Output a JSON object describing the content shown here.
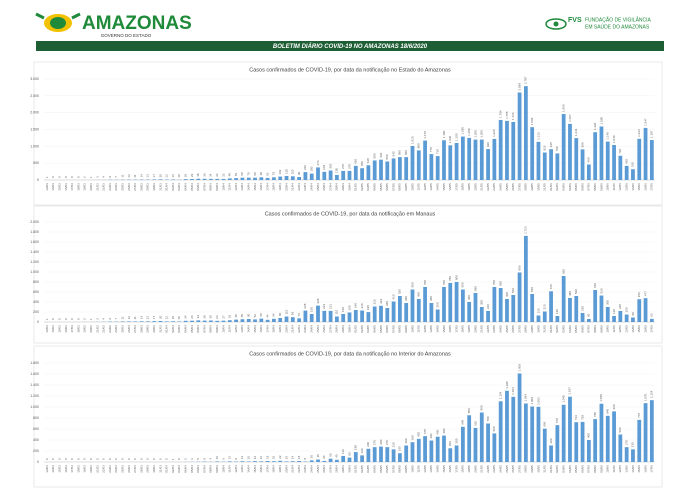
{
  "header": {
    "logo": "AMAZONAS",
    "logo_sub": "GOVERNO DO ESTADO",
    "org": "FVS",
    "org_sub1": "FUNDAÇÃO DE VIGILÂNCIA",
    "org_sub2": "EM SAÚDE DO AMAZONAS",
    "banner": "BOLETIM DIÁRIO COVID-19 NO AMAZONAS 18/6/2020"
  },
  "chart_data": [
    {
      "type": "bar",
      "title": "Casos confirmados de COVID-19, por data da notificação no Estado do Amazonas",
      "color": "#5b9bd5",
      "categories": [
        "13/03",
        "14/03",
        "15/03",
        "16/03",
        "17/03",
        "18/03",
        "19/03",
        "20/03",
        "21/03",
        "22/03",
        "23/03",
        "24/03",
        "25/03",
        "26/03",
        "27/03",
        "28/03",
        "29/03",
        "30/03",
        "31/03",
        "01/04",
        "02/04",
        "03/04",
        "04/04",
        "05/04",
        "06/04",
        "07/04",
        "08/04",
        "09/04",
        "10/04",
        "11/04",
        "12/04",
        "13/04",
        "14/04",
        "15/04",
        "16/04",
        "17/04",
        "18/04",
        "19/04",
        "20/04",
        "21/04",
        "22/04",
        "23/04",
        "24/04",
        "25/04",
        "26/04",
        "27/04",
        "28/04",
        "29/04",
        "30/04",
        "01/05",
        "02/05",
        "03/05",
        "04/05",
        "05/05",
        "06/05",
        "07/05",
        "08/05",
        "09/05",
        "10/05",
        "11/05",
        "12/05",
        "13/05",
        "14/05",
        "15/05",
        "16/05",
        "17/05",
        "18/05",
        "19/05",
        "20/05",
        "21/05",
        "22/05",
        "23/05",
        "24/05",
        "25/05",
        "26/05",
        "27/05",
        "28/05",
        "29/05",
        "30/05",
        "31/05",
        "01/06",
        "02/06",
        "03/06",
        "04/06",
        "05/06",
        "06/06",
        "07/06",
        "08/06",
        "09/06",
        "10/06",
        "11/06",
        "12/06",
        "13/06",
        "14/06",
        "15/06",
        "16/06",
        "17/06"
      ],
      "values": [
        1,
        0,
        0,
        0,
        0,
        0,
        2,
        1,
        3,
        4,
        9,
        7,
        11,
        12,
        11,
        14,
        13,
        17,
        20,
        12,
        16,
        10,
        26,
        29,
        38,
        36,
        34,
        33,
        33,
        48,
        56,
        69,
        70,
        68,
        80,
        62,
        79,
        102,
        120,
        110,
        90,
        236,
        190,
        373,
        243,
        281,
        150,
        270,
        270,
        420,
        350,
        438,
        580,
        604,
        550,
        640,
        680,
        680,
        1010,
        880,
        1170,
        770,
        710,
        1180,
        1030,
        1100,
        1290,
        1250,
        1200,
        1200,
        920,
        1220,
        1784,
        1755,
        1724,
        2599,
        2787,
        1569,
        1133,
        816,
        915,
        790,
        1960,
        1667,
        1244,
        909,
        460,
        1420,
        1590,
        1140,
        1040,
        720,
        420,
        320,
        1223,
        1547,
        1187
      ],
      "value_labels": [
        "1",
        "0",
        "0",
        "0",
        "0",
        "0",
        "2",
        "1",
        "3",
        "4",
        "9",
        "7",
        "11",
        "12",
        "11",
        "14",
        "13",
        "17",
        "20",
        "12",
        "16",
        "10",
        "26",
        "29",
        "38",
        "36",
        "34",
        "33",
        "33",
        "48",
        "56",
        "69",
        "70",
        "68",
        "80",
        "62",
        "79",
        "102",
        "120",
        "110",
        "90",
        "236",
        "190",
        "373",
        "243",
        "281",
        "150",
        "270",
        "270",
        "420",
        "350",
        "438",
        "580",
        "604",
        "550",
        "640",
        "680",
        "680",
        "1.010",
        "880",
        "1.170",
        "770",
        "710",
        "1.180",
        "1.030",
        "1.100",
        "1.290",
        "1.250",
        "1.200",
        "1.200",
        "920",
        "1.220",
        "1.784",
        "1.755",
        "1.724",
        "2.599",
        "2.787",
        "1.569",
        "1.133",
        "816",
        "915",
        "790",
        "1.960",
        "1.667",
        "1.244",
        "909",
        "460",
        "1.420",
        "1.590",
        "1.140",
        "1.040",
        "720",
        "420",
        "320",
        "1.223",
        "1.547",
        "1.187"
      ],
      "ylim": [
        0,
        3000
      ],
      "yticks": [
        {
          "value": 3000,
          "label": "3.000"
        },
        {
          "value": 2500,
          "label": "2.500"
        },
        {
          "value": 2000,
          "label": "2.000"
        },
        {
          "value": 1500,
          "label": "1.500"
        },
        {
          "value": 1000,
          "label": "1.000"
        },
        500,
        0
      ]
    },
    {
      "type": "bar",
      "title": "Casos confirmados de COVID-19, por data da notificação em Manaus",
      "color": "#5b9bd5",
      "categories": [
        "13/03",
        "14/03",
        "15/03",
        "16/03",
        "17/03",
        "18/03",
        "19/03",
        "20/03",
        "21/03",
        "22/03",
        "23/03",
        "24/03",
        "25/03",
        "26/03",
        "27/03",
        "28/03",
        "29/03",
        "30/03",
        "31/03",
        "01/04",
        "02/04",
        "03/04",
        "04/04",
        "05/04",
        "06/04",
        "07/04",
        "08/04",
        "09/04",
        "10/04",
        "11/04",
        "12/04",
        "13/04",
        "14/04",
        "15/04",
        "16/04",
        "17/04",
        "18/04",
        "19/04",
        "20/04",
        "21/04",
        "22/04",
        "23/04",
        "24/04",
        "25/04",
        "26/04",
        "27/04",
        "28/04",
        "29/04",
        "30/04",
        "01/05",
        "02/05",
        "03/05",
        "04/05",
        "05/05",
        "06/05",
        "07/05",
        "08/05",
        "09/05",
        "10/05",
        "11/05",
        "12/05",
        "13/05",
        "14/05",
        "15/05",
        "16/05",
        "17/05",
        "18/05",
        "19/05",
        "20/05",
        "21/05",
        "22/05",
        "23/05",
        "24/05",
        "25/05",
        "26/05",
        "27/05",
        "28/05",
        "29/05",
        "30/05",
        "31/05",
        "01/06",
        "02/06",
        "03/06",
        "04/06",
        "05/06",
        "06/06",
        "07/06",
        "08/06",
        "09/06",
        "10/06",
        "11/06",
        "12/06",
        "13/06",
        "14/06",
        "15/06",
        "16/06",
        "17/06"
      ],
      "values": [
        1,
        0,
        0,
        0,
        0,
        0,
        2,
        1,
        3,
        4,
        9,
        7,
        11,
        12,
        11,
        14,
        13,
        17,
        20,
        12,
        15,
        10,
        24,
        26,
        33,
        28,
        30,
        23,
        27,
        36,
        48,
        55,
        60,
        52,
        68,
        44,
        64,
        80,
        110,
        96,
        72,
        228,
        160,
        328,
        223,
        221,
        110,
        160,
        190,
        240,
        230,
        198,
        310,
        324,
        280,
        410,
        520,
        380,
        650,
        460,
        700,
        380,
        250,
        700,
        780,
        800,
        650,
        400,
        580,
        300,
        220,
        700,
        680,
        460,
        540,
        990,
        1723,
        560,
        130,
        210,
        615,
        120,
        920,
        480,
        520,
        180,
        60,
        640,
        530,
        300,
        120,
        220,
        150,
        90,
        456,
        477,
        63
      ],
      "value_labels": [
        "1",
        "0",
        "0",
        "0",
        "0",
        "0",
        "2",
        "1",
        "3",
        "4",
        "9",
        "7",
        "11",
        "12",
        "11",
        "14",
        "13",
        "17",
        "20",
        "12",
        "15",
        "10",
        "24",
        "26",
        "33",
        "28",
        "30",
        "23",
        "27",
        "36",
        "48",
        "55",
        "60",
        "52",
        "68",
        "44",
        "64",
        "80",
        "110",
        "96",
        "72",
        "228",
        "160",
        "328",
        "223",
        "221",
        "110",
        "160",
        "190",
        "240",
        "230",
        "198",
        "310",
        "324",
        "280",
        "410",
        "520",
        "380",
        "650",
        "460",
        "700",
        "380",
        "250",
        "700",
        "780",
        "800",
        "650",
        "400",
        "580",
        "300",
        "220",
        "700",
        "680",
        "460",
        "540",
        "990",
        "1.723",
        "560",
        "130",
        "210",
        "615",
        "120",
        "920",
        "480",
        "520",
        "180",
        "60",
        "640",
        "530",
        "300",
        "120",
        "220",
        "150",
        "90",
        "456",
        "477",
        "63"
      ],
      "ylim": [
        0,
        2000
      ],
      "yticks": [
        {
          "value": 2000,
          "label": "2.000"
        },
        {
          "value": 1800,
          "label": "1.800"
        },
        {
          "value": 1600,
          "label": "1.600"
        },
        {
          "value": 1400,
          "label": "1.400"
        },
        {
          "value": 1200,
          "label": "1.200"
        },
        {
          "value": 1000,
          "label": "1.000"
        },
        800,
        600,
        400,
        200,
        0
      ]
    },
    {
      "type": "bar",
      "title": "Casos confirmados de COVID-19, por data da notificação no  Interior do Amazonas",
      "color": "#5b9bd5",
      "categories": [
        "13/03",
        "14/03",
        "15/03",
        "16/03",
        "17/03",
        "18/03",
        "19/03",
        "20/03",
        "21/03",
        "22/03",
        "23/03",
        "24/03",
        "25/03",
        "26/03",
        "27/03",
        "28/03",
        "29/03",
        "30/03",
        "31/03",
        "01/04",
        "02/04",
        "03/04",
        "04/04",
        "05/04",
        "06/04",
        "07/04",
        "08/04",
        "09/04",
        "10/04",
        "11/04",
        "12/04",
        "13/04",
        "14/04",
        "15/04",
        "16/04",
        "17/04",
        "18/04",
        "19/04",
        "20/04",
        "21/04",
        "22/04",
        "23/04",
        "24/04",
        "25/04",
        "26/04",
        "27/04",
        "28/04",
        "29/04",
        "30/04",
        "01/05",
        "02/05",
        "03/05",
        "04/05",
        "05/05",
        "06/05",
        "07/05",
        "08/05",
        "09/05",
        "10/05",
        "11/05",
        "12/05",
        "13/05",
        "14/05",
        "15/05",
        "16/05",
        "17/05",
        "18/05",
        "19/05",
        "20/05",
        "21/05",
        "22/05",
        "23/05",
        "24/05",
        "25/05",
        "26/05",
        "27/05",
        "28/05",
        "29/05",
        "30/05",
        "31/05",
        "01/06",
        "02/06",
        "03/06",
        "04/06",
        "05/06",
        "06/06",
        "07/06",
        "08/06",
        "09/06",
        "10/06",
        "11/06",
        "12/06",
        "13/06",
        "14/06",
        "15/06",
        "16/06",
        "17/06"
      ],
      "values": [
        0,
        0,
        0,
        0,
        0,
        0,
        0,
        0,
        0,
        0,
        0,
        0,
        0,
        0,
        0,
        0,
        0,
        0,
        0,
        0,
        1,
        0,
        2,
        3,
        5,
        8,
        4,
        10,
        6,
        12,
        8,
        14,
        10,
        16,
        12,
        18,
        15,
        22,
        10,
        14,
        18,
        8,
        30,
        45,
        20,
        60,
        40,
        110,
        80,
        180,
        120,
        240,
        270,
        280,
        270,
        230,
        160,
        300,
        360,
        420,
        470,
        390,
        460,
        480,
        250,
        300,
        640,
        850,
        620,
        900,
        700,
        520,
        1104,
        1295,
        1184,
        1609,
        1064,
        1009,
        1003,
        606,
        300,
        670,
        1040,
        1187,
        724,
        729,
        400,
        780,
        1060,
        840,
        920,
        500,
        270,
        230,
        767,
        1070,
        1124
      ],
      "value_labels": [
        "0",
        "0",
        "0",
        "0",
        "0",
        "0",
        "0",
        "0",
        "0",
        "0",
        "0",
        "0",
        "0",
        "0",
        "0",
        "0",
        "0",
        "0",
        "0",
        "0",
        "1",
        "0",
        "2",
        "3",
        "5",
        "8",
        "4",
        "10",
        "6",
        "12",
        "8",
        "14",
        "10",
        "16",
        "12",
        "18",
        "15",
        "22",
        "10",
        "14",
        "18",
        "8",
        "30",
        "45",
        "20",
        "60",
        "40",
        "110",
        "80",
        "180",
        "120",
        "240",
        "270",
        "280",
        "270",
        "230",
        "160",
        "300",
        "360",
        "420",
        "470",
        "390",
        "460",
        "480",
        "250",
        "300",
        "640",
        "850",
        "620",
        "900",
        "700",
        "520",
        "1.104",
        "1.295",
        "1.184",
        "1.609",
        "1.064",
        "1.009",
        "1.003",
        "606",
        "300",
        "670",
        "1.040",
        "1.187",
        "724",
        "729",
        "400",
        "780",
        "1.060",
        "840",
        "920",
        "500",
        "270",
        "230",
        "767",
        "1.070",
        "1.124"
      ],
      "ylim": [
        0,
        1800
      ],
      "yticks": [
        {
          "value": 1800,
          "label": "1.800"
        },
        {
          "value": 1600,
          "label": "1.600"
        },
        {
          "value": 1400,
          "label": "1.400"
        },
        {
          "value": 1200,
          "label": "1.200"
        },
        {
          "value": 1000,
          "label": "1.000"
        },
        800,
        600,
        400,
        200,
        0
      ]
    }
  ]
}
